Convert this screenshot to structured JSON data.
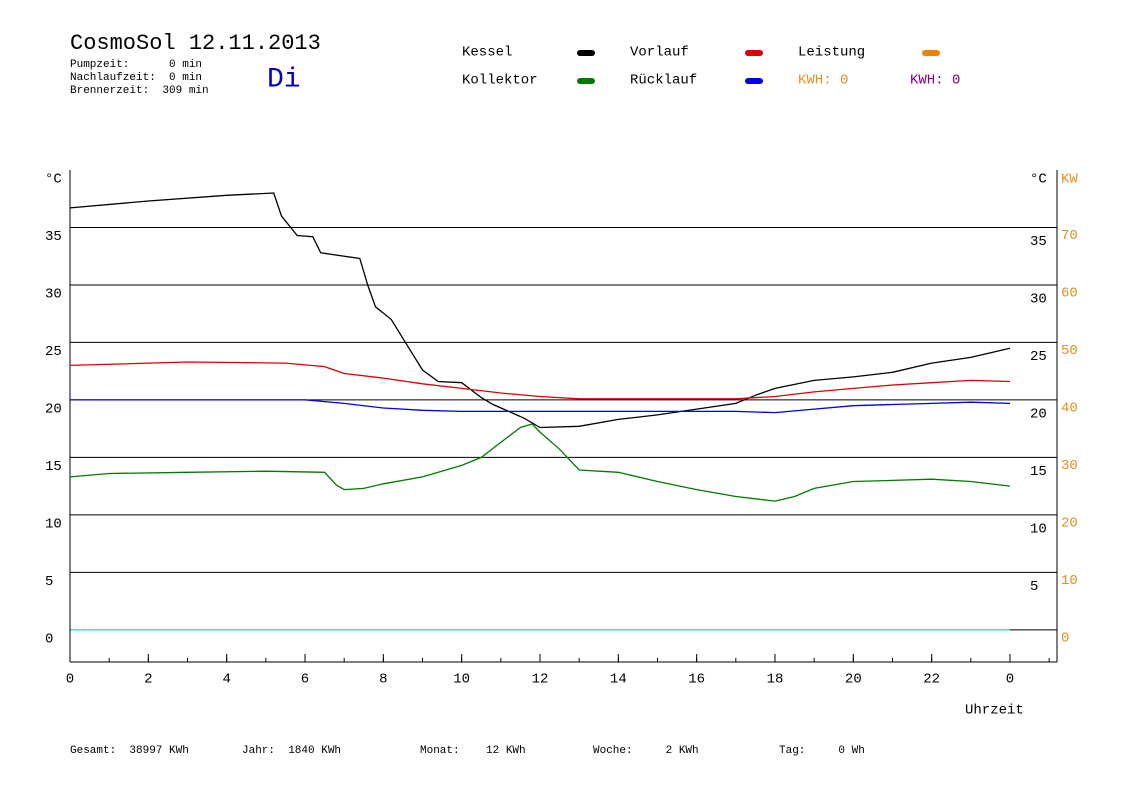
{
  "chart_data": {
    "type": "line",
    "title": "CosmoSol 12.11.2013",
    "weekday": "Di",
    "stats": [
      "Pumpzeit:      0 min",
      "Nachlaufzeit:  0 min",
      "Brennerzeit:  309 min"
    ],
    "series": [
      {
        "name": "Kessel",
        "color": "#000000",
        "x": [
          0,
          2,
          4,
          5.2,
          5.4,
          5.8,
          6.2,
          6.4,
          7.4,
          7.6,
          7.8,
          8.2,
          8.6,
          9,
          9.4,
          10,
          10.5,
          10.8,
          11.2,
          11.6,
          12,
          13,
          14,
          15,
          16,
          17,
          17.5,
          18,
          19,
          20,
          21,
          22,
          23,
          24
        ],
        "values": [
          36.7,
          37.3,
          37.8,
          38,
          36,
          34.3,
          34.2,
          32.8,
          32.3,
          30,
          28.1,
          27,
          24.8,
          22.6,
          21.6,
          21.5,
          20.2,
          19.6,
          19,
          18.4,
          17.6,
          17.7,
          18.3,
          18.7,
          19.2,
          19.7,
          20.4,
          21,
          21.7,
          22,
          22.4,
          23.2,
          23.7,
          24.5
        ]
      },
      {
        "name": "Kollektor",
        "color": "#007a00",
        "x": [
          0,
          1,
          3,
          5,
          6.5,
          6.8,
          7,
          7.5,
          8,
          9,
          10,
          10.5,
          11,
          11.5,
          11.8,
          12,
          12.5,
          13,
          14,
          15,
          16,
          17,
          18,
          18.5,
          19,
          20,
          21,
          22,
          23,
          24
        ],
        "values": [
          13.3,
          13.6,
          13.7,
          13.8,
          13.7,
          12.6,
          12.2,
          12.3,
          12.7,
          13.3,
          14.3,
          15,
          16.3,
          17.6,
          17.9,
          17.2,
          15.7,
          13.9,
          13.7,
          12.9,
          12.2,
          11.6,
          11.2,
          11.6,
          12.3,
          12.9,
          13,
          13.1,
          12.9,
          12.5
        ]
      },
      {
        "name": "Vorlauf",
        "color": "#e00000",
        "x": [
          0,
          3,
          5.5,
          6.5,
          7,
          8,
          9,
          10,
          11,
          12,
          13,
          17,
          18,
          19,
          20,
          21,
          22,
          23,
          24
        ],
        "values": [
          23,
          23.3,
          23.2,
          22.9,
          22.3,
          21.9,
          21.4,
          21,
          20.6,
          20.3,
          20.1,
          20.1,
          20.3,
          20.7,
          21,
          21.3,
          21.5,
          21.7,
          21.6
        ]
      },
      {
        "name": "Rücklauf",
        "color": "#0000e0",
        "x": [
          0,
          6,
          7,
          8,
          9,
          10,
          14,
          17,
          18,
          19,
          20,
          21,
          22,
          23,
          24
        ],
        "values": [
          20,
          20,
          19.7,
          19.3,
          19.1,
          19,
          19,
          19,
          18.9,
          19.2,
          19.5,
          19.6,
          19.7,
          19.8,
          19.7
        ]
      }
    ],
    "legend_extra": {
      "name": "Leistung",
      "color": "#f08000"
    },
    "kwh_labels": [
      {
        "text": "KWH: 0",
        "color": "#e09020"
      },
      {
        "text": "KWH: 0",
        "color": "#800080"
      }
    ],
    "xlim": [
      0,
      25.2
    ],
    "xticks": [
      0,
      2,
      4,
      6,
      8,
      10,
      12,
      14,
      16,
      18,
      20,
      22,
      {
        "value": 24,
        "label": "0"
      }
    ],
    "xlabel": "Uhrzeit",
    "ylim": [
      -2.8,
      40
    ],
    "yticks": [
      0,
      5,
      10,
      15,
      20,
      25,
      30,
      35
    ],
    "yticks_right": [
      5,
      10,
      15,
      20,
      25,
      30,
      35
    ],
    "ylabel": "°C",
    "ylabel_right": "°C",
    "y2lim": [
      -5.6,
      80
    ],
    "y2ticks": [
      0,
      10,
      20,
      30,
      40,
      50,
      60,
      70
    ],
    "y2label": "KW",
    "y2color": "#e09020",
    "grid": true,
    "footer": [
      "Gesamt:  38997 KWh",
      "Jahr:  1840 KWh",
      "Monat:    12 KWh",
      "Woche:     2 KWh",
      "Tag:     0 Wh"
    ]
  }
}
